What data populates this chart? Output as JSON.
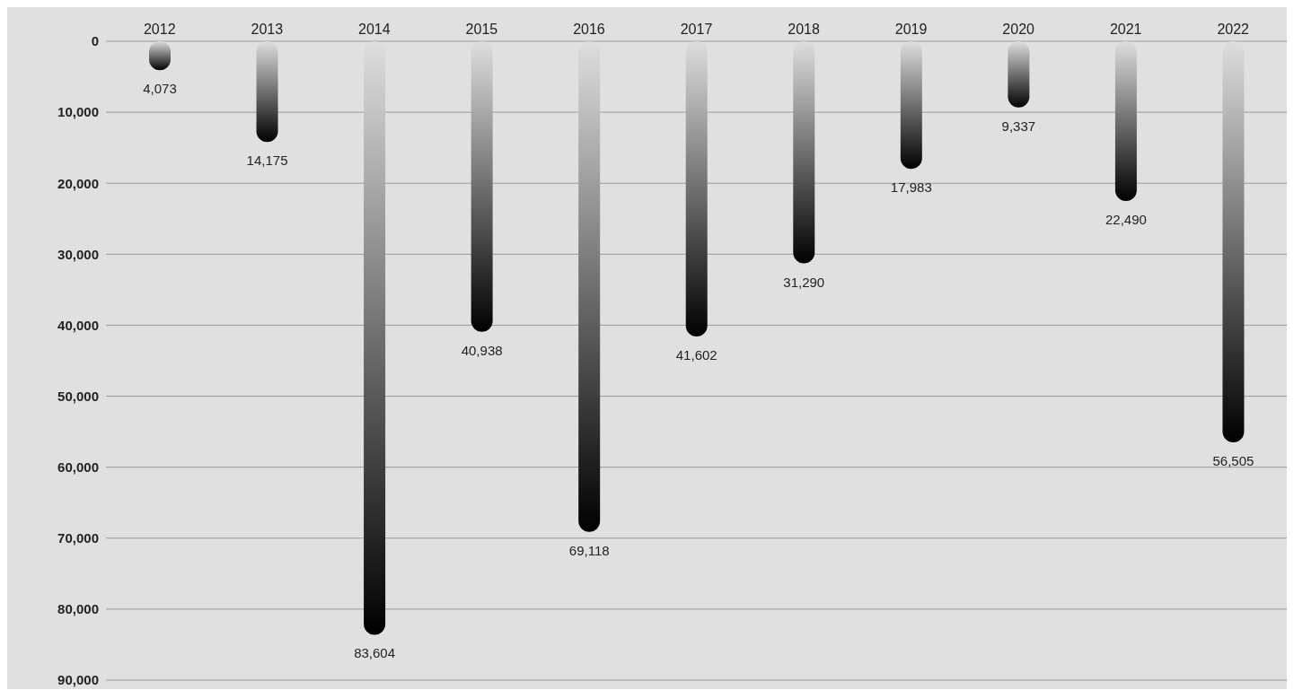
{
  "chart_data": {
    "type": "bar",
    "categories": [
      "2012",
      "2013",
      "2014",
      "2015",
      "2016",
      "2017",
      "2018",
      "2019",
      "2020",
      "2021",
      "2022"
    ],
    "values": [
      4073,
      14175,
      83604,
      40938,
      69118,
      41602,
      31290,
      17983,
      9337,
      22490,
      56505
    ],
    "value_labels": [
      "4,073",
      "14,175",
      "83,604",
      "40,938",
      "69,118",
      "41,602",
      "31,290",
      "17,983",
      "9,337",
      "22,490",
      "56,505"
    ],
    "color": "#000000",
    "ylim": [
      90000,
      0
    ],
    "yticks": [
      0,
      {
        "value": 10000,
        "label": "10,000"
      },
      {
        "value": 20000,
        "label": "20,000"
      },
      {
        "value": 30000,
        "label": "30,000"
      },
      {
        "value": 40000,
        "label": "40,000"
      },
      {
        "value": 50000,
        "label": "50,000"
      },
      {
        "value": 60000,
        "label": "60,000"
      },
      {
        "value": 70000,
        "label": "70,000"
      },
      {
        "value": 80000,
        "label": "80,000"
      },
      {
        "value": 90000,
        "label": "90,000"
      }
    ],
    "grid": "y"
  }
}
